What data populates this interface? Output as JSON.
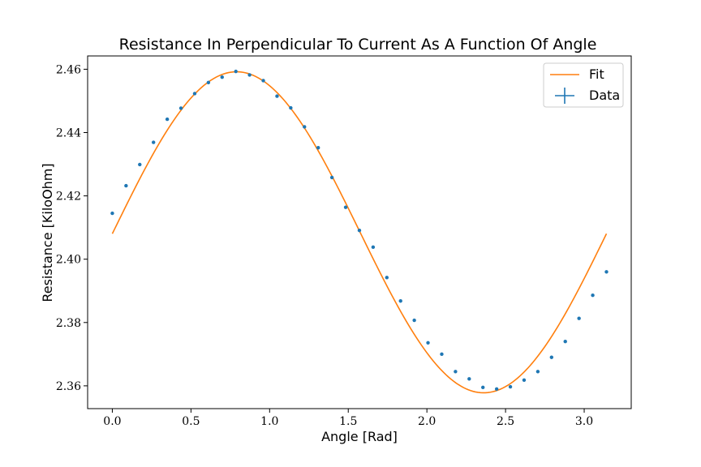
{
  "chart_data": {
    "type": "scatter",
    "title": "Resistance In Perpendicular To Current As A Function Of Angle",
    "xlabel": "Angle [Rad]",
    "ylabel": "Resistance [KiloOhm]",
    "xlim": [
      -0.157,
      3.299
    ],
    "ylim": [
      2.3528,
      2.4642
    ],
    "xticks": [
      0.0,
      0.5,
      1.0,
      1.5,
      2.0,
      2.5,
      3.0
    ],
    "xtick_labels": [
      "0.0",
      "0.5",
      "1.0",
      "1.5",
      "2.0",
      "2.5",
      "3.0"
    ],
    "yticks": [
      2.36,
      2.38,
      2.4,
      2.42,
      2.44,
      2.46
    ],
    "ytick_labels": [
      "2.36",
      "2.38",
      "2.40",
      "2.42",
      "2.44",
      "2.46"
    ],
    "grid": false,
    "legend_position": "top-right",
    "series": [
      {
        "name": "Fit",
        "kind": "line",
        "color": "#ff7f0e",
        "function": "a + b*sin(2x + c)",
        "x_range": [
          0.0,
          3.1416
        ],
        "params": {
          "a": 2.4085,
          "b": 0.0507,
          "c": -0.009
        }
      },
      {
        "name": "Data",
        "kind": "points",
        "color": "#1f77b4",
        "x": [
          0.0,
          0.0873,
          0.1745,
          0.2618,
          0.3491,
          0.4363,
          0.5236,
          0.6109,
          0.6981,
          0.7854,
          0.8727,
          0.9599,
          1.0472,
          1.1345,
          1.2217,
          1.309,
          1.3963,
          1.4835,
          1.5708,
          1.6581,
          1.7453,
          1.8326,
          1.9199,
          2.0071,
          2.0944,
          2.1817,
          2.2689,
          2.3562,
          2.4435,
          2.5307,
          2.618,
          2.7053,
          2.7925,
          2.8798,
          2.9671,
          3.0543,
          3.1416
        ],
        "y": [
          2.4145,
          2.4232,
          2.4299,
          2.4369,
          2.4442,
          2.4477,
          2.4523,
          2.4558,
          2.4575,
          2.4593,
          2.4582,
          2.4564,
          2.4515,
          2.4478,
          2.4418,
          2.4352,
          2.4258,
          2.4164,
          2.4091,
          2.4038,
          2.3942,
          2.3868,
          2.3807,
          2.3736,
          2.37,
          2.3645,
          2.3622,
          2.3595,
          2.359,
          2.3597,
          2.3618,
          2.3645,
          2.369,
          2.374,
          2.3813,
          2.3886,
          2.396
        ]
      }
    ]
  }
}
